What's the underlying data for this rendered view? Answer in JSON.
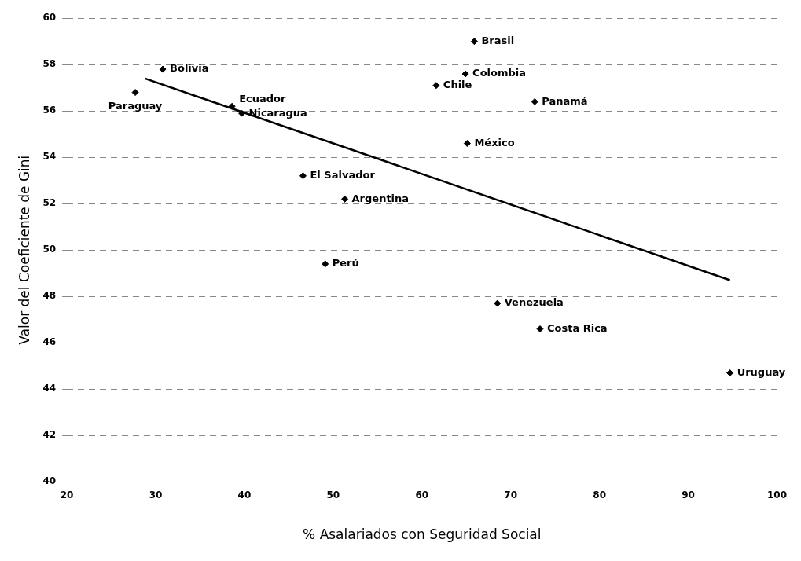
{
  "chart_data": {
    "type": "scatter",
    "xlabel": "% Asalariados con Seguridad Social",
    "ylabel": "Valor del Coeficiente de Gini",
    "xlim": [
      20,
      100
    ],
    "xticks": [
      20,
      30,
      40,
      50,
      60,
      70,
      80,
      90,
      100
    ],
    "ylim": [
      40,
      60
    ],
    "yticks": [
      40,
      42,
      44,
      46,
      48,
      50,
      52,
      54,
      56,
      58,
      60
    ],
    "grid": "y",
    "legend": false,
    "series": [
      {
        "marker": "diamond",
        "color": "#000000",
        "x": [
          30.8,
          27.7,
          38.6,
          39.7,
          46.6,
          51.3,
          49.1,
          65.9,
          64.9,
          61.6,
          72.7,
          65.1,
          68.5,
          73.3,
          94.7
        ],
        "values": [
          57.8,
          56.8,
          56.2,
          55.9,
          53.2,
          52.2,
          49.4,
          59.0,
          57.6,
          57.1,
          56.4,
          54.6,
          47.7,
          46.6,
          44.7
        ]
      },
      {
        "type": "line",
        "marker": "none",
        "color": "#000000",
        "x": [
          28.8,
          94.7
        ],
        "values": [
          57.4,
          48.7
        ]
      }
    ],
    "annotations": [
      {
        "text": "Bolivia",
        "x": 30.8,
        "y": 57.8
      },
      {
        "text": "Paraguay",
        "x": 27.7,
        "y": 56.8
      },
      {
        "text": "Ecuador",
        "x": 38.6,
        "y": 56.2
      },
      {
        "text": "Nicaragua",
        "x": 39.7,
        "y": 55.9
      },
      {
        "text": "El Salvador",
        "x": 46.6,
        "y": 53.2
      },
      {
        "text": "Argentina",
        "x": 51.3,
        "y": 52.2
      },
      {
        "text": "Perú",
        "x": 49.1,
        "y": 49.4
      },
      {
        "text": "Brasil",
        "x": 65.9,
        "y": 59.0
      },
      {
        "text": "Colombia",
        "x": 64.9,
        "y": 57.6
      },
      {
        "text": "Chile",
        "x": 61.6,
        "y": 57.1
      },
      {
        "text": "Panamá",
        "x": 72.7,
        "y": 56.4
      },
      {
        "text": "México",
        "x": 65.1,
        "y": 54.6
      },
      {
        "text": "Venezuela",
        "x": 68.5,
        "y": 47.7
      },
      {
        "text": "Costa Rica",
        "x": 73.3,
        "y": 46.6
      },
      {
        "text": "Uruguay",
        "x": 94.7,
        "y": 44.7
      }
    ]
  }
}
